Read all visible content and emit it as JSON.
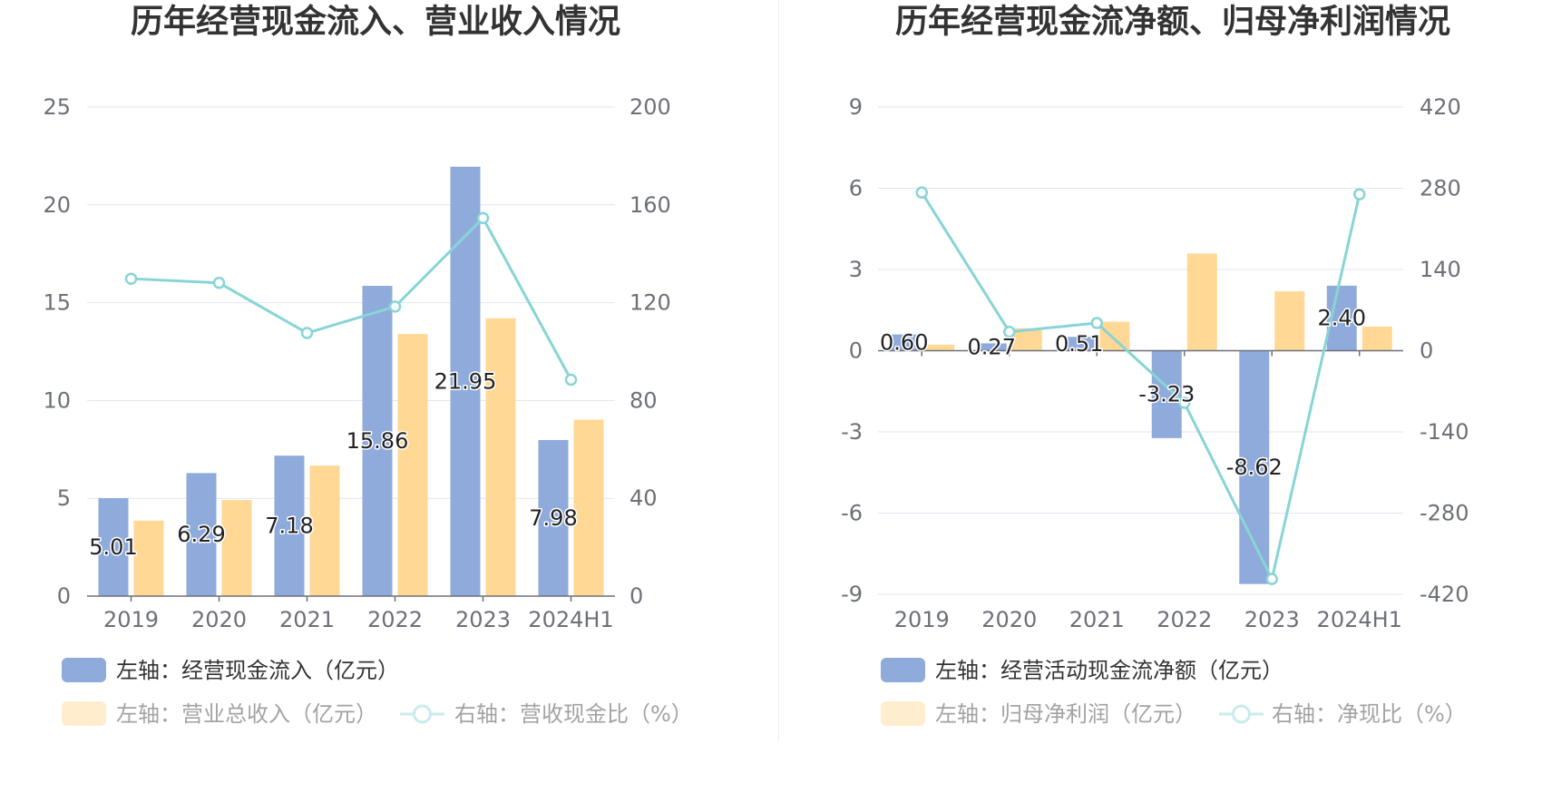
{
  "chart_data": [
    {
      "type": "bar",
      "title": "历年经营现金流入、营业收入情况",
      "categories": [
        "2019",
        "2020",
        "2021",
        "2022",
        "2023",
        "2024H1"
      ],
      "y_left": {
        "min": 0,
        "max": 25,
        "ticks": [
          0,
          5,
          10,
          15,
          20,
          25
        ]
      },
      "y_right": {
        "min": 0,
        "max": 200,
        "ticks": [
          0,
          40,
          80,
          120,
          160,
          200
        ]
      },
      "grid": true,
      "legend_position": "bottom-left",
      "series": [
        {
          "name": "左轴：经营现金流入（亿元）",
          "type": "bar",
          "axis": "left",
          "color": "#8fabdb",
          "values": [
            5.01,
            6.29,
            7.18,
            15.86,
            21.95,
            7.98
          ],
          "labels": [
            "5.01",
            "6.29",
            "7.18",
            "15.86",
            "21.95",
            "7.98"
          ]
        },
        {
          "name": "左轴：营业总收入（亿元）",
          "type": "bar",
          "axis": "left",
          "color": "#ffd895",
          "values": [
            3.86,
            4.91,
            6.67,
            13.4,
            14.2,
            9.02
          ]
        },
        {
          "name": "右轴：营收现金比（%）",
          "type": "line",
          "axis": "right",
          "color": "#88d4d6",
          "values": [
            129.8,
            128.1,
            107.6,
            118.4,
            154.6,
            88.5
          ]
        }
      ]
    },
    {
      "type": "bar",
      "title": "历年经营现金流净额、归母净利润情况",
      "categories": [
        "2019",
        "2020",
        "2021",
        "2022",
        "2023",
        "2024H1"
      ],
      "y_left": {
        "min": -9,
        "max": 9,
        "ticks": [
          -9,
          -6,
          -3,
          0,
          3,
          6,
          9
        ]
      },
      "y_right": {
        "min": -420,
        "max": 420,
        "ticks": [
          -420,
          -280,
          -140,
          0,
          140,
          280,
          420
        ]
      },
      "grid": true,
      "legend_position": "bottom-left",
      "series": [
        {
          "name": "左轴：经营活动现金流净额（亿元）",
          "type": "bar",
          "axis": "left",
          "color": "#8fabdb",
          "values": [
            0.6,
            0.27,
            0.51,
            -3.23,
            -8.62,
            2.4
          ],
          "labels": [
            "0.60",
            "0.27",
            "0.51",
            "-3.23",
            "-8.62",
            "2.40"
          ]
        },
        {
          "name": "左轴：归母净利润（亿元）",
          "type": "bar",
          "axis": "left",
          "color": "#ffd895",
          "values": [
            0.22,
            0.83,
            1.07,
            3.59,
            2.19,
            0.89
          ]
        },
        {
          "name": "右轴：净现比（%）",
          "type": "line",
          "axis": "right",
          "color": "#88d4d6",
          "values": [
            272.7,
            32.5,
            47.7,
            -90.0,
            -393.6,
            269.7
          ]
        }
      ]
    }
  ]
}
